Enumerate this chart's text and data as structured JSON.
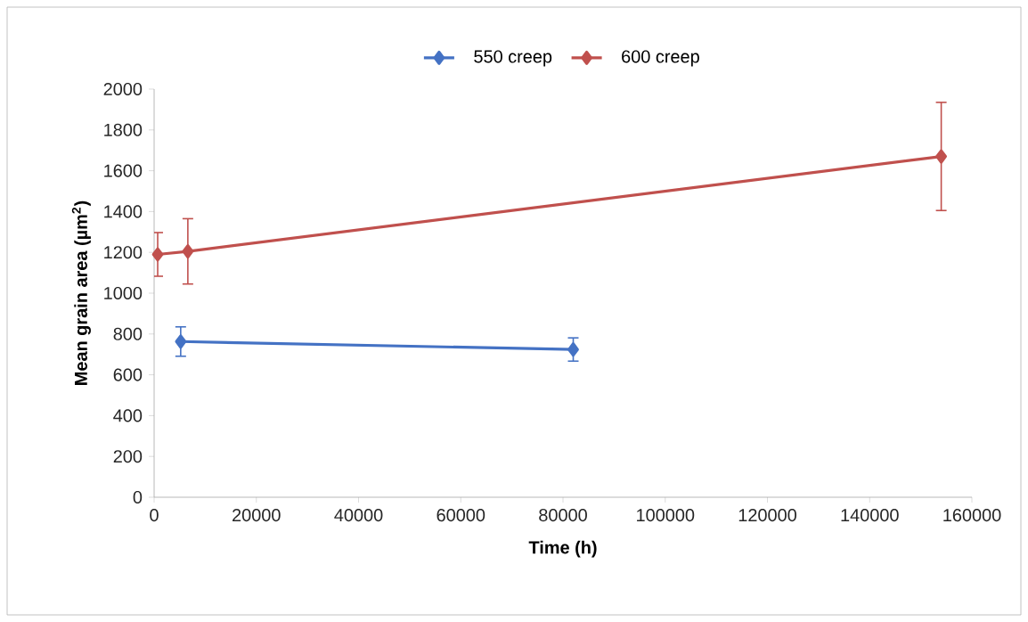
{
  "chart_data": {
    "type": "line",
    "xlabel": "Time (h)",
    "ylabel": "Mean grain area (µm$^{2}$)",
    "series": [
      {
        "name": "550 creep",
        "color": "#4472c4",
        "x": [
          5200,
          82000
        ],
        "values": [
          763,
          724
        ],
        "errors": [
          72,
          57
        ]
      },
      {
        "name": "600 creep",
        "color": "#c0504d",
        "x": [
          700,
          6600,
          154000
        ],
        "values": [
          1190,
          1205,
          1670
        ],
        "errors": [
          107,
          160,
          265
        ]
      }
    ],
    "xlim": [
      0,
      160000
    ],
    "xticks": [
      0,
      20000,
      40000,
      60000,
      80000,
      100000,
      120000,
      140000,
      160000
    ],
    "ylim": [
      0,
      2000
    ],
    "yticks": [
      0,
      200,
      400,
      600,
      800,
      1000,
      1200,
      1400,
      1600,
      1800,
      2000
    ],
    "grid": false,
    "legend": "top",
    "marker": "diamond",
    "line_style": "solid"
  }
}
